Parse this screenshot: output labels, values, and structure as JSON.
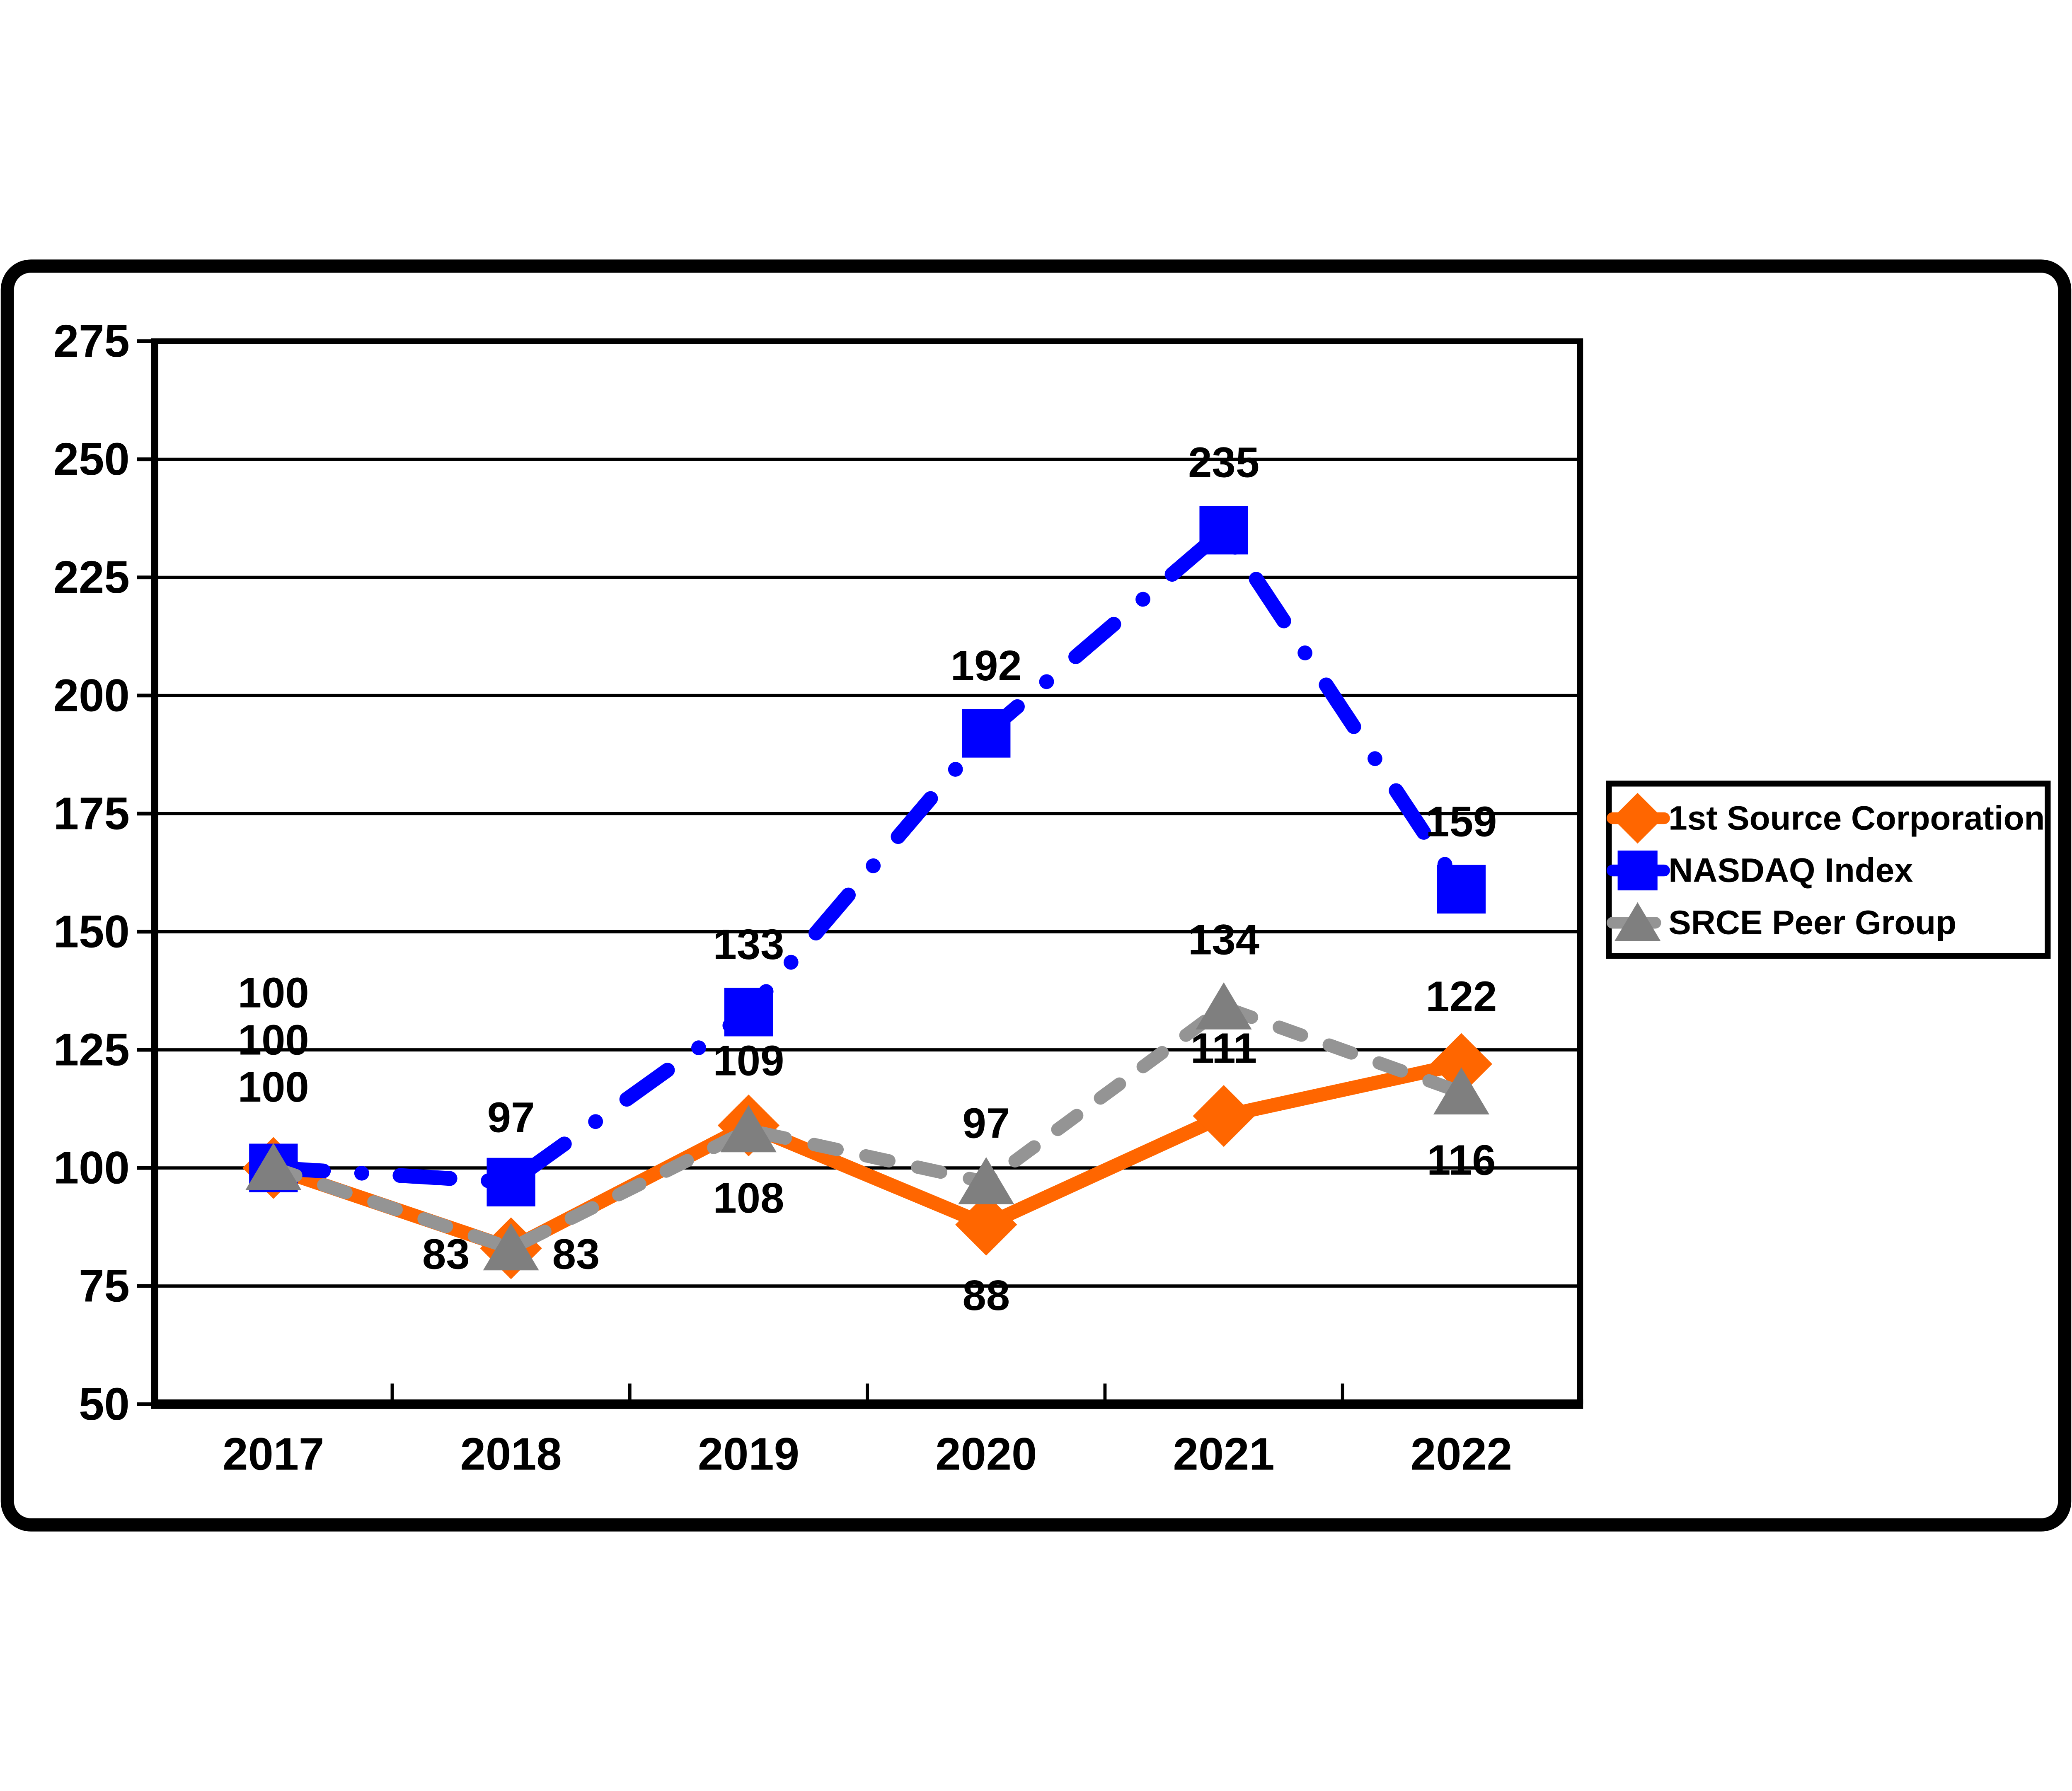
{
  "chart_data": {
    "type": "line",
    "title": "",
    "xlabel": "",
    "ylabel": "",
    "categories": [
      "2017",
      "2018",
      "2019",
      "2020",
      "2021",
      "2022"
    ],
    "series": [
      {
        "name": "1st Source Corporation",
        "values": [
          100,
          83,
          109,
          88,
          111,
          122
        ],
        "color": "#FF6600",
        "line_style": "solid",
        "marker": "diamond-icon"
      },
      {
        "name": "NASDAQ Index",
        "values": [
          100,
          97,
          133,
          192,
          235,
          159
        ],
        "color": "#0000FF",
        "line_style": "dash-dot",
        "marker": "square-icon"
      },
      {
        "name": "SRCE Peer Group",
        "values": [
          100,
          83,
          108,
          97,
          134,
          116
        ],
        "color": "#7F7F7F",
        "line_color": "#949494",
        "line_style": "dashed",
        "marker": "triangle-icon"
      }
    ],
    "ylim": [
      50,
      275
    ],
    "yticks": [
      50,
      75,
      100,
      125,
      150,
      175,
      200,
      225,
      250,
      275
    ],
    "grid": "horizontal",
    "legend_position": "right",
    "axis_color": "#000000",
    "background_color": "#FFFFFF"
  },
  "legend": {
    "items": [
      {
        "label": "1st Source Corporation"
      },
      {
        "label": "NASDAQ Index"
      },
      {
        "label": "SRCE Peer Group"
      }
    ]
  }
}
